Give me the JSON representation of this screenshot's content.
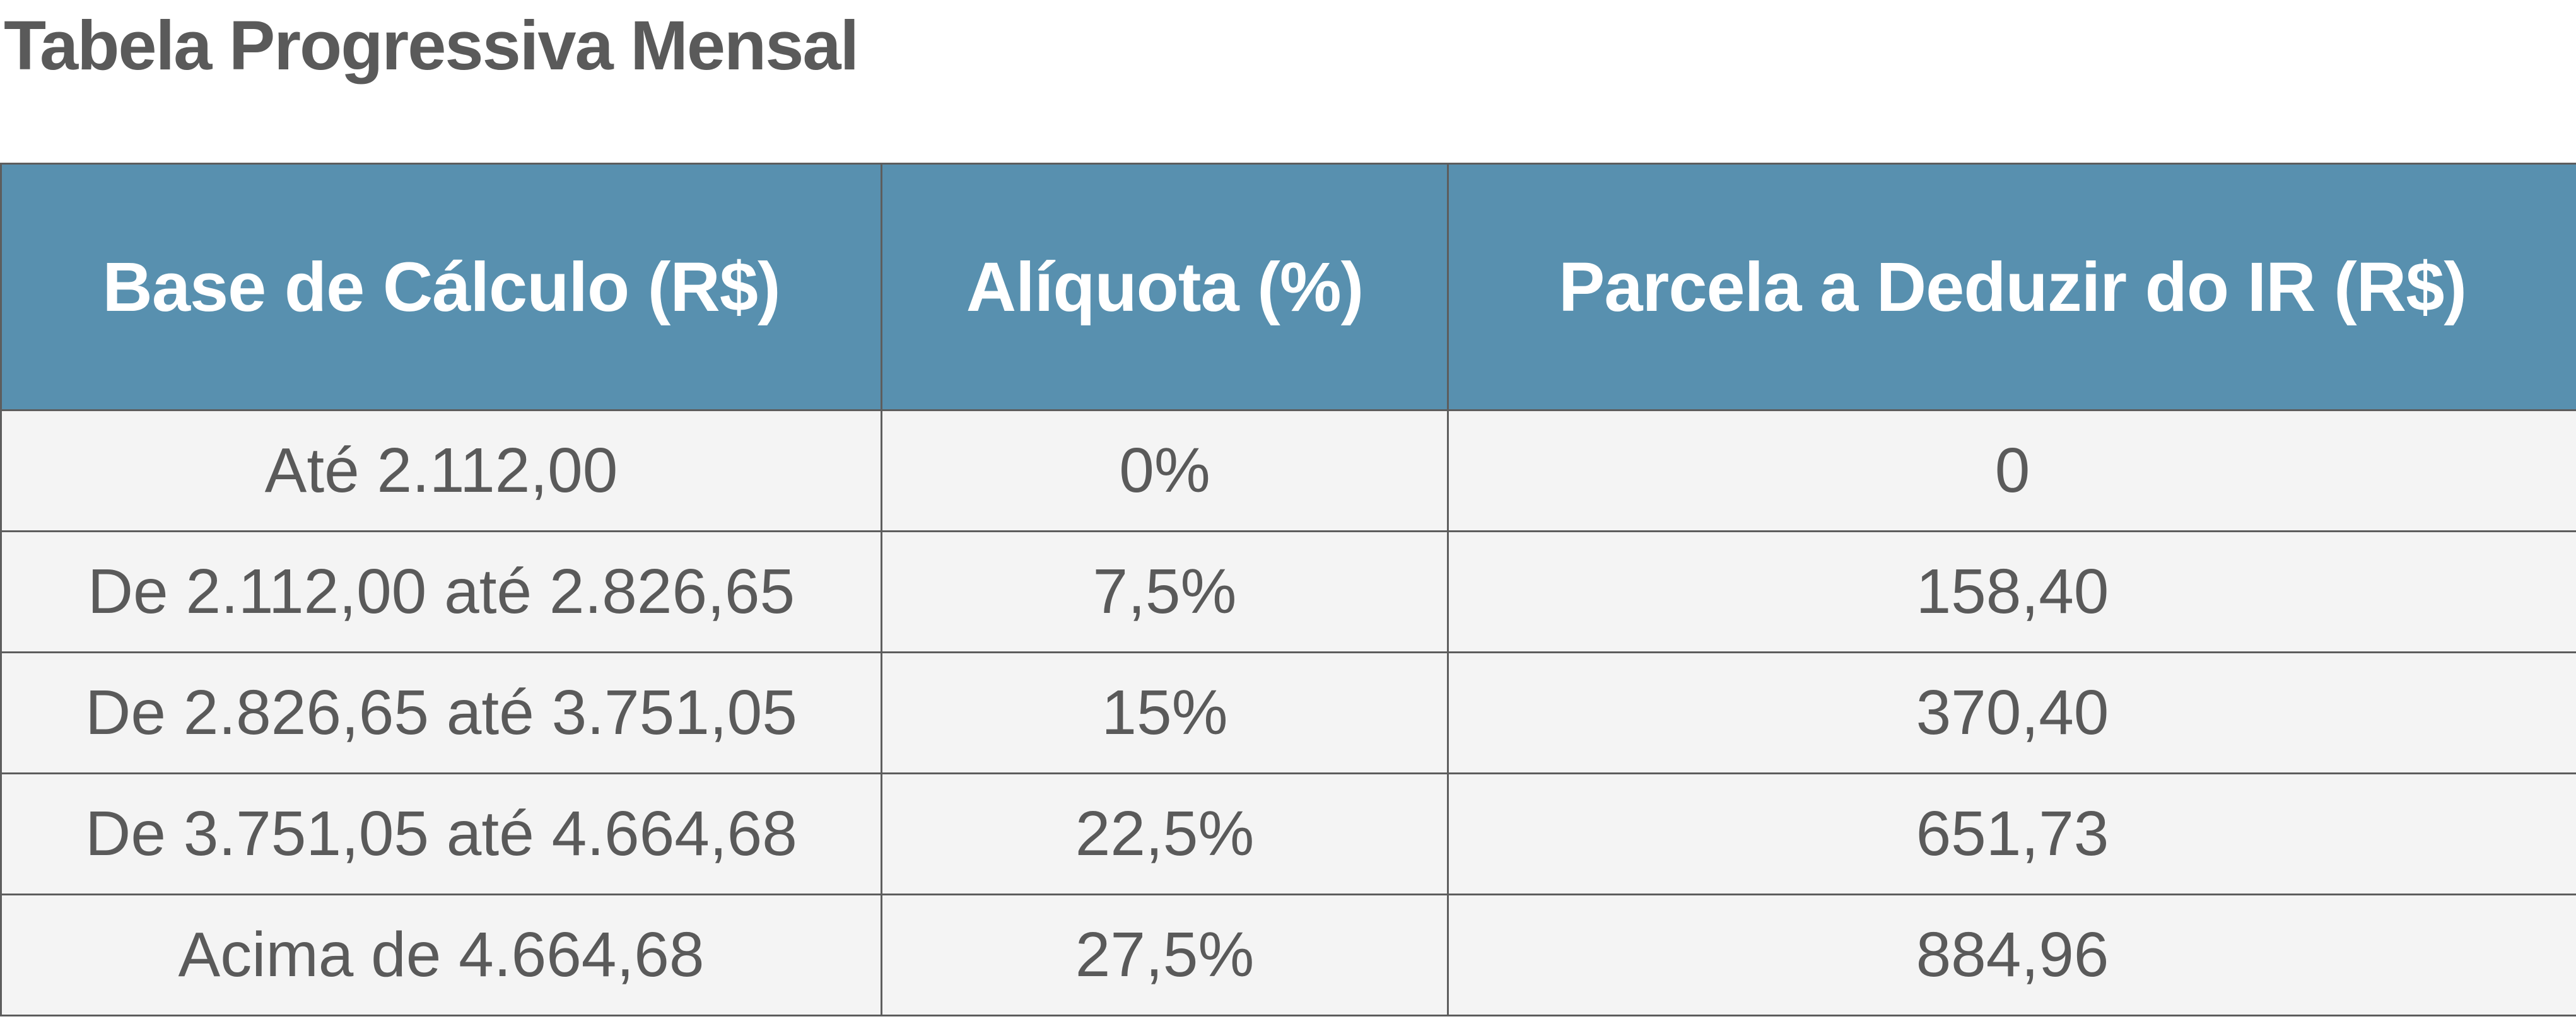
{
  "title": "Tabela Progressiva Mensal",
  "table": {
    "headers": [
      "Base de Cálculo (R$)",
      "Alíquota (%)",
      "Parcela a Deduzir do IR (R$)"
    ],
    "rows": [
      [
        "Até 2.112,00",
        "0%",
        "0"
      ],
      [
        "De 2.112,00 até 2.826,65",
        "7,5%",
        "158,40"
      ],
      [
        "De 2.826,65 até 3.751,05",
        "15%",
        "370,40"
      ],
      [
        "De 3.751,05 até 4.664,68",
        "22,5%",
        "651,73"
      ],
      [
        "Acima de 4.664,68",
        "27,5%",
        "884,96"
      ]
    ]
  },
  "colors": {
    "header_background": "#5890af",
    "header_text": "#ffffff",
    "body_background": "#f4f4f4",
    "text": "#5a5a5a",
    "border": "#5d5d5d"
  }
}
